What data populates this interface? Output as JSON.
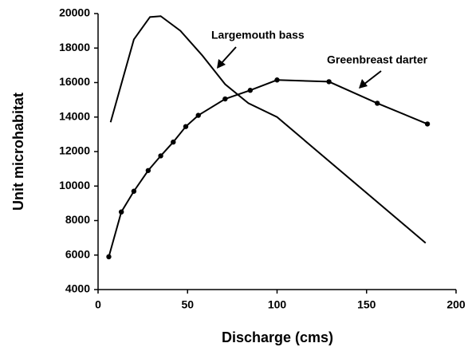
{
  "chart_data": {
    "type": "line",
    "xlabel": "Discharge (cms)",
    "ylabel": "Unit microhabitat",
    "xlim": [
      0,
      200
    ],
    "xticks": [
      0,
      50,
      100,
      150,
      200
    ],
    "ylim": [
      4000,
      20000
    ],
    "yticks": [
      4000,
      6000,
      8000,
      10000,
      12000,
      14000,
      16000,
      18000,
      20000
    ],
    "series": [
      {
        "name": "Largemouth bass",
        "color": "#000000",
        "markers": false,
        "x": [
          7,
          20,
          29,
          35,
          46,
          58,
          71,
          84,
          100,
          183
        ],
        "values": [
          13700,
          18500,
          19800,
          19850,
          19000,
          17600,
          15900,
          14800,
          14000,
          6700
        ]
      },
      {
        "name": "Greenbreast darter",
        "color": "#000000",
        "markers": true,
        "x": [
          6,
          13,
          20,
          28,
          35,
          42,
          49,
          56,
          71,
          85,
          100,
          129,
          156,
          184
        ],
        "values": [
          5900,
          8500,
          9700,
          10900,
          11750,
          12550,
          13450,
          14100,
          15050,
          15550,
          16150,
          16050,
          14800,
          13600
        ]
      }
    ]
  }
}
